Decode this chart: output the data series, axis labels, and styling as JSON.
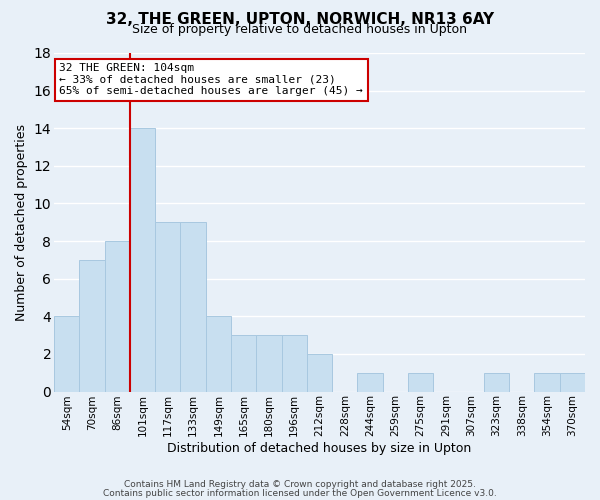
{
  "title": "32, THE GREEN, UPTON, NORWICH, NR13 6AY",
  "subtitle": "Size of property relative to detached houses in Upton",
  "xlabel": "Distribution of detached houses by size in Upton",
  "ylabel": "Number of detached properties",
  "bar_color": "#c8dff0",
  "bar_edgecolor": "#a8c8e0",
  "background_color": "#e8f0f8",
  "grid_color": "#ffffff",
  "bins": [
    "54sqm",
    "70sqm",
    "86sqm",
    "101sqm",
    "117sqm",
    "133sqm",
    "149sqm",
    "165sqm",
    "180sqm",
    "196sqm",
    "212sqm",
    "228sqm",
    "244sqm",
    "259sqm",
    "275sqm",
    "291sqm",
    "307sqm",
    "323sqm",
    "338sqm",
    "354sqm",
    "370sqm"
  ],
  "values": [
    4,
    7,
    8,
    14,
    9,
    9,
    4,
    3,
    3,
    3,
    2,
    0,
    1,
    0,
    1,
    0,
    0,
    1,
    0,
    1,
    1
  ],
  "vline_x": 2.5,
  "vline_color": "#cc0000",
  "ylim": [
    0,
    18
  ],
  "yticks": [
    0,
    2,
    4,
    6,
    8,
    10,
    12,
    14,
    16,
    18
  ],
  "annotation_title": "32 THE GREEN: 104sqm",
  "annotation_line1": "← 33% of detached houses are smaller (23)",
  "annotation_line2": "65% of semi-detached houses are larger (45) →",
  "annotation_box_color": "#ffffff",
  "annotation_box_edgecolor": "#cc0000",
  "footnote1": "Contains HM Land Registry data © Crown copyright and database right 2025.",
  "footnote2": "Contains public sector information licensed under the Open Government Licence v3.0."
}
